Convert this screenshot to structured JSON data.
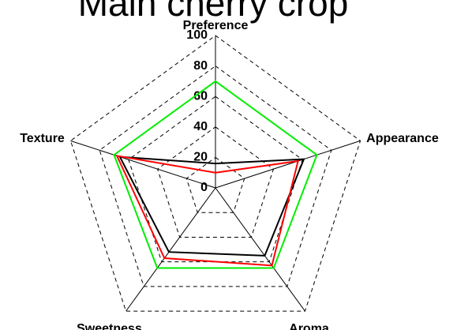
{
  "chart_data": {
    "type": "radar",
    "title": "Main cherry crop",
    "categories": [
      "Preference",
      "Appearance",
      "Aroma",
      "Sweetness",
      "Texture"
    ],
    "series": [
      {
        "color": "#00ee00",
        "values": [
          70,
          70,
          65,
          65,
          70
        ]
      },
      {
        "color": "#000000",
        "values": [
          16,
          61,
          55,
          52,
          66
        ]
      },
      {
        "color": "#ff0000",
        "values": [
          10,
          57,
          63,
          57,
          68
        ]
      }
    ],
    "ylim": [
      0,
      100
    ],
    "yticks": [
      0,
      20,
      40,
      60,
      80,
      100
    ],
    "grid": true
  }
}
